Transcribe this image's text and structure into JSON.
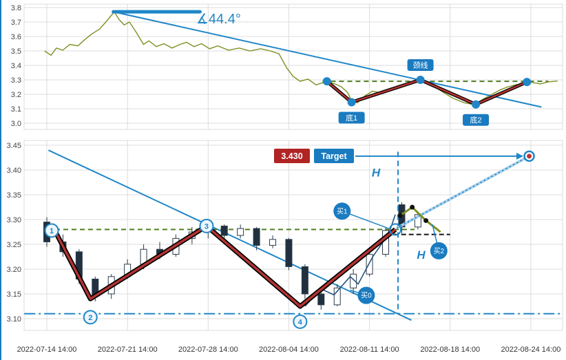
{
  "colors": {
    "blue": "#1f86c8",
    "light_blue": "#a8cfe9",
    "olive": "#7e8f21",
    "red": "#b43333",
    "candle_dark": "#20303f",
    "candle_stroke": "#2a3a4a",
    "green_dashed": "#4e7d1e",
    "grid": "#dcdcdc",
    "axis_text": "#444444",
    "badge_red": "#b02424",
    "badge_blue": "#1a7bc0",
    "black": "#111111",
    "path_blue": "#27517e"
  },
  "chart_data": [
    {
      "type": "line",
      "panel": "top",
      "ylim": [
        3.0,
        3.8
      ],
      "yticks": [
        "3.8",
        "3.7",
        "3.6",
        "3.5",
        "3.4",
        "3.3",
        "3.2",
        "3.1",
        "3.0"
      ],
      "line": [
        [
          0.038,
          3.5
        ],
        [
          0.05,
          3.47
        ],
        [
          0.06,
          3.52
        ],
        [
          0.072,
          3.505
        ],
        [
          0.085,
          3.545
        ],
        [
          0.1,
          3.535
        ],
        [
          0.112,
          3.575
        ],
        [
          0.125,
          3.615
        ],
        [
          0.14,
          3.65
        ],
        [
          0.152,
          3.7
        ],
        [
          0.162,
          3.745
        ],
        [
          0.168,
          3.77
        ],
        [
          0.176,
          3.72
        ],
        [
          0.186,
          3.68
        ],
        [
          0.196,
          3.7
        ],
        [
          0.21,
          3.62
        ],
        [
          0.222,
          3.545
        ],
        [
          0.232,
          3.57
        ],
        [
          0.246,
          3.53
        ],
        [
          0.26,
          3.55
        ],
        [
          0.275,
          3.52
        ],
        [
          0.29,
          3.545
        ],
        [
          0.302,
          3.56
        ],
        [
          0.316,
          3.53
        ],
        [
          0.33,
          3.55
        ],
        [
          0.345,
          3.515
        ],
        [
          0.36,
          3.535
        ],
        [
          0.38,
          3.505
        ],
        [
          0.4,
          3.52
        ],
        [
          0.42,
          3.5
        ],
        [
          0.44,
          3.515
        ],
        [
          0.458,
          3.5
        ],
        [
          0.474,
          3.48
        ],
        [
          0.488,
          3.385
        ],
        [
          0.5,
          3.325
        ],
        [
          0.513,
          3.29
        ],
        [
          0.528,
          3.305
        ],
        [
          0.543,
          3.265
        ],
        [
          0.563,
          3.29
        ],
        [
          0.578,
          3.272
        ],
        [
          0.59,
          3.252
        ],
        [
          0.602,
          3.21
        ],
        [
          0.609,
          3.155
        ],
        [
          0.62,
          3.142
        ],
        [
          0.634,
          3.19
        ],
        [
          0.648,
          3.222
        ],
        [
          0.663,
          3.21
        ],
        [
          0.678,
          3.232
        ],
        [
          0.698,
          3.252
        ],
        [
          0.718,
          3.272
        ],
        [
          0.737,
          3.3
        ],
        [
          0.75,
          3.282
        ],
        [
          0.764,
          3.252
        ],
        [
          0.78,
          3.212
        ],
        [
          0.798,
          3.172
        ],
        [
          0.818,
          3.142
        ],
        [
          0.838,
          3.128
        ],
        [
          0.855,
          3.17
        ],
        [
          0.87,
          3.2
        ],
        [
          0.886,
          3.232
        ],
        [
          0.9,
          3.252
        ],
        [
          0.915,
          3.266
        ],
        [
          0.93,
          3.272
        ],
        [
          0.945,
          3.282
        ],
        [
          0.96,
          3.272
        ],
        [
          0.975,
          3.286
        ],
        [
          0.992,
          3.292
        ]
      ],
      "zigzag": [
        [
          0.563,
          3.29
        ],
        [
          0.609,
          3.145
        ],
        [
          0.737,
          3.3
        ],
        [
          0.84,
          3.13
        ],
        [
          0.935,
          3.285
        ]
      ],
      "dots": [
        [
          0.563,
          3.29
        ],
        [
          0.609,
          3.145
        ],
        [
          0.737,
          3.3
        ],
        [
          0.84,
          3.13
        ],
        [
          0.935,
          3.285
        ]
      ],
      "neckline_level": 3.29,
      "neckline_span": [
        0.555,
        0.975
      ],
      "trendline": {
        "from": [
          0.166,
          3.771
        ],
        "to": [
          0.962,
          3.112
        ]
      },
      "angle_baseline": {
        "from": [
          0.166,
          3.771
        ],
        "to": [
          0.327,
          3.771
        ]
      },
      "angle_label": "∡44.4°",
      "labels": [
        {
          "text": "底1",
          "t": 0.609,
          "price": 3.145,
          "placement": "below"
        },
        {
          "text": "颈线",
          "t": 0.737,
          "price": 3.3,
          "placement": "above"
        },
        {
          "text": "底2",
          "t": 0.84,
          "price": 3.13,
          "placement": "below"
        }
      ]
    },
    {
      "type": "candlestick",
      "panel": "bottom",
      "ylim": [
        3.1,
        3.45
      ],
      "yticks": [
        "3.45",
        "3.40",
        "3.35",
        "3.30",
        "3.25",
        "3.20",
        "3.15",
        "3.10"
      ],
      "xticks": [
        {
          "slot": 0,
          "label": "2022-07-14 14:00"
        },
        {
          "slot": 5,
          "label": "2022-07-21 14:00"
        },
        {
          "slot": 10,
          "label": "2022-07-28 14:00"
        },
        {
          "slot": 15,
          "label": "2022-08-04 14:00"
        },
        {
          "slot": 20,
          "label": "2022-08-11 14:00"
        },
        {
          "slot": 25,
          "label": "2022-08-18 14:00"
        },
        {
          "slot": 30,
          "label": "2022-08-24 14:00"
        }
      ],
      "candles_format": [
        "open",
        "high",
        "low",
        "close"
      ],
      "candles": [
        [
          3.295,
          3.305,
          3.245,
          3.255
        ],
        [
          3.255,
          3.27,
          3.225,
          3.235
        ],
        [
          3.235,
          3.24,
          3.17,
          3.18
        ],
        [
          3.18,
          3.185,
          3.135,
          3.145
        ],
        [
          3.15,
          3.19,
          3.14,
          3.185
        ],
        [
          3.185,
          3.22,
          3.18,
          3.21
        ],
        [
          3.21,
          3.25,
          3.2,
          3.24
        ],
        [
          3.24,
          3.255,
          3.22,
          3.23
        ],
        [
          3.23,
          3.27,
          3.225,
          3.262
        ],
        [
          3.262,
          3.285,
          3.25,
          3.275
        ],
        [
          3.275,
          3.295,
          3.262,
          3.287
        ],
        [
          3.287,
          3.29,
          3.258,
          3.268
        ],
        [
          3.268,
          3.29,
          3.262,
          3.282
        ],
        [
          3.282,
          3.285,
          3.238,
          3.248
        ],
        [
          3.248,
          3.268,
          3.242,
          3.26
        ],
        [
          3.26,
          3.263,
          3.198,
          3.205
        ],
        [
          3.205,
          3.21,
          3.14,
          3.15
        ],
        [
          3.15,
          3.155,
          3.118,
          3.128
        ],
        [
          3.128,
          3.17,
          3.125,
          3.162
        ],
        [
          3.162,
          3.2,
          3.15,
          3.19
        ],
        [
          3.19,
          3.24,
          3.185,
          3.23
        ],
        [
          3.23,
          3.285,
          3.225,
          3.278
        ],
        [
          3.33,
          3.335,
          3.272,
          3.285
        ],
        [
          3.285,
          3.315,
          3.28,
          3.31
        ]
      ],
      "zigzag": [
        [
          0.3,
          3.29
        ],
        [
          2.7,
          3.14
        ],
        [
          9.9,
          3.287
        ],
        [
          15.7,
          3.125
        ],
        [
          21.6,
          3.28
        ]
      ],
      "price_path": [
        [
          16,
          3.125
        ],
        [
          17,
          3.16
        ],
        [
          17.8,
          3.148
        ],
        [
          18.8,
          3.185
        ],
        [
          19.3,
          3.17
        ],
        [
          20.2,
          3.225
        ],
        [
          21.2,
          3.272
        ],
        [
          21.6,
          3.31
        ]
      ],
      "numbered_points": [
        {
          "label": "1",
          "slot": 0.3,
          "price": 3.278
        },
        {
          "label": "2",
          "slot": 2.7,
          "price": 3.103
        },
        {
          "label": "3",
          "slot": 9.9,
          "price": 3.287
        },
        {
          "label": "4",
          "slot": 15.7,
          "price": 3.094
        }
      ],
      "ring_point": {
        "slot": 21.6,
        "price": 3.28
      },
      "buy_markers": [
        {
          "label": "买1",
          "slot": 18.3,
          "price": 3.317,
          "pointer_to": [
            21.2,
            3.282
          ]
        },
        {
          "label": "买0",
          "slot": 19.8,
          "price": 3.147,
          "pointer_to": [
            18.8,
            3.158
          ]
        },
        {
          "label": "买2",
          "slot": 24.3,
          "price": 3.237,
          "pointer_to": [
            23.9,
            3.29
          ]
        }
      ],
      "h_labels": [
        {
          "text": "H",
          "slot": 20.4,
          "price": 3.387
        },
        {
          "text": "H",
          "slot": 23.2,
          "price": 3.221
        }
      ],
      "trendline": {
        "from": [
          0.1,
          3.44
        ],
        "to": [
          22.6,
          3.097
        ]
      },
      "neckline": {
        "level": 3.28,
        "span": [
          0,
          22.8
        ]
      },
      "support": {
        "level": 3.11,
        "span": [
          -1.4,
          32
        ]
      },
      "vline": {
        "slot": 21.77,
        "from": 3.437,
        "to": 3.11
      },
      "measure_seg": {
        "level": 3.27,
        "span": [
          21.5,
          25.0
        ]
      },
      "pattern_line": {
        "points": [
          [
            21.9,
            3.308
          ],
          [
            22.65,
            3.325
          ],
          [
            23.5,
            3.298
          ],
          [
            24.4,
            3.275
          ]
        ],
        "dots": [
          0,
          1,
          2
        ]
      },
      "projection": {
        "from": [
          21.7,
          3.283
        ],
        "to": [
          29.9,
          3.428
        ]
      },
      "target": {
        "price_label": "3.430",
        "button_label": "Target",
        "point": [
          29.9,
          3.428
        ],
        "arrow_price": 3.428
      }
    }
  ]
}
